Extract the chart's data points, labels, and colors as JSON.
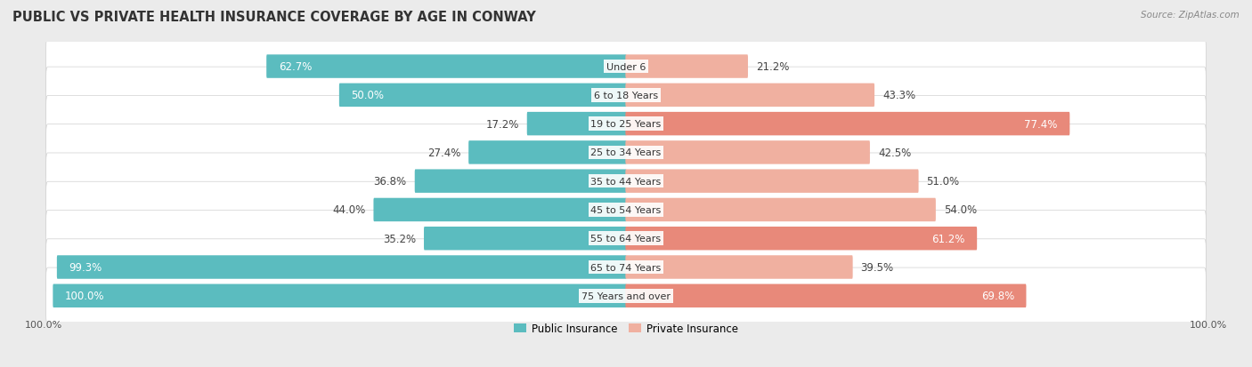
{
  "title": "PUBLIC VS PRIVATE HEALTH INSURANCE COVERAGE BY AGE IN CONWAY",
  "source": "Source: ZipAtlas.com",
  "categories": [
    "Under 6",
    "6 to 18 Years",
    "19 to 25 Years",
    "25 to 34 Years",
    "35 to 44 Years",
    "45 to 54 Years",
    "55 to 64 Years",
    "65 to 74 Years",
    "75 Years and over"
  ],
  "public": [
    62.7,
    50.0,
    17.2,
    27.4,
    36.8,
    44.0,
    35.2,
    99.3,
    100.0
  ],
  "private": [
    21.2,
    43.3,
    77.4,
    42.5,
    51.0,
    54.0,
    61.2,
    39.5,
    69.8
  ],
  "public_color": "#5bbcbf",
  "private_color": "#e8897a",
  "private_color_light": "#f0b0a0",
  "bg_color": "#ebebeb",
  "row_bg_color": "#f5f5f5",
  "title_fontsize": 10.5,
  "label_fontsize": 8.5,
  "category_fontsize": 8,
  "max_value": 100.0,
  "legend_public": "Public Insurance",
  "legend_private": "Private Insurance",
  "bottom_label": "100.0%"
}
